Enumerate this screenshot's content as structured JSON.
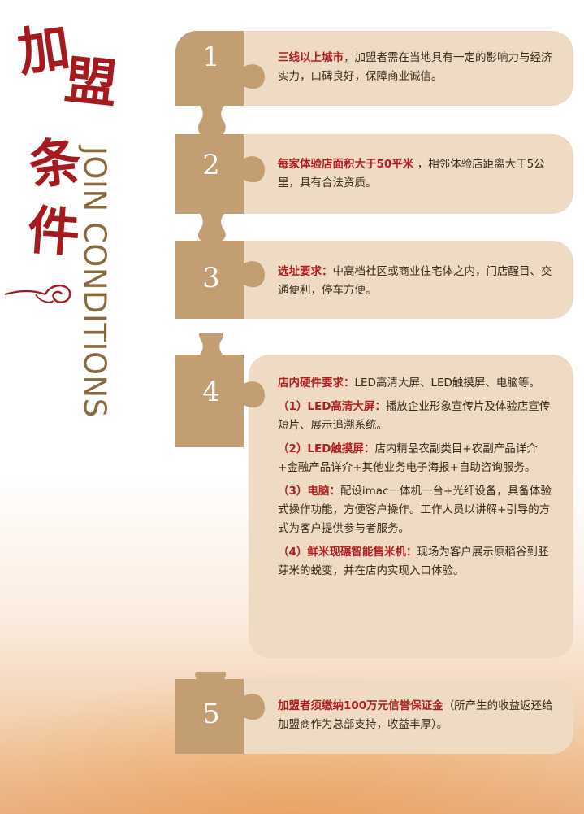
{
  "title": {
    "cn_chars": [
      "加",
      "盟",
      "条",
      "件"
    ],
    "en": "JOIN CONDITIONS"
  },
  "colors": {
    "accent_red": "#b01e22",
    "card_bg": "#efdbc4",
    "piece_brown": "#c39e72",
    "title_gold": "#8a6a3a"
  },
  "conditions": [
    {
      "number": "1",
      "heading": "三线以上城市",
      "body": "，加盟者需在当地具有一定的影响力与经济实力，口碑良好，保障商业诚信。"
    },
    {
      "number": "2",
      "heading": "每家体验店面积大于50平米",
      "body": " ，相邻体验店距离大于5公里，具有合法资质。"
    },
    {
      "number": "3",
      "heading": "选址要求：",
      "body": "中高档社区或商业住宅体之内，门店醒目、交通便利，停车方便。"
    },
    {
      "number": "4",
      "heading": "店内硬件要求：",
      "body": "LED高清大屏、LED触摸屏、电脑等。",
      "items": [
        {
          "heading": "（1）LED高清大屏：",
          "body": "播放企业形象宣传片及体验店宣传短片、展示追溯系统。"
        },
        {
          "heading": "（2）LED触摸屏：",
          "body": "店内精品农副类目+农副产品详介+金融产品详介+其他业务电子海报+自助咨询服务。"
        },
        {
          "heading": "（3）电脑：",
          "body": "配设imac一体机一台+光纤设备，具备体验式操作功能，方便客户操作。工作人员以讲解+引导的方式为客户提供参与者服务。"
        },
        {
          "heading": "（4）鲜米现碾智能售米机：",
          "body": "现场为客户展示原稻谷到胚芽米的蜕变，并在店内实现入口体验。"
        }
      ]
    },
    {
      "number": "5",
      "heading": "加盟者须缴纳100万元信誉保证金",
      "body": "（所产生的收益返还给加盟商作为总部支持，收益丰厚）。"
    }
  ]
}
